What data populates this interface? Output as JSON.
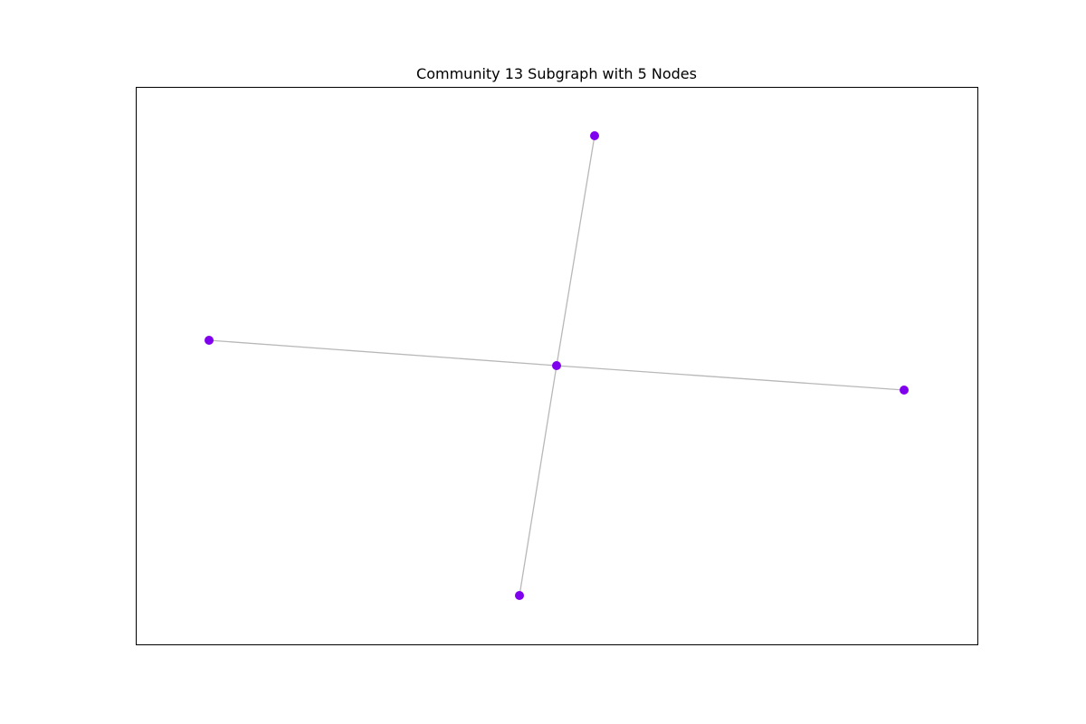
{
  "title": "Community 13 Subgraph with 5 Nodes",
  "colors": {
    "node": "#7f00ee",
    "edge": "#b8b8b8",
    "frame": "#000000",
    "background": "#ffffff"
  },
  "graph": {
    "nodes": [
      {
        "id": "center",
        "x": 0.0,
        "y": 0.0
      },
      {
        "id": "top",
        "x": 0.42,
        "y": 2.54
      },
      {
        "id": "left",
        "x": -3.84,
        "y": 0.28
      },
      {
        "id": "right",
        "x": 3.84,
        "y": -0.27
      },
      {
        "id": "bottom",
        "x": -0.41,
        "y": -2.54
      }
    ],
    "edges": [
      {
        "source": "center",
        "target": "top"
      },
      {
        "source": "center",
        "target": "left"
      },
      {
        "source": "center",
        "target": "right"
      },
      {
        "source": "center",
        "target": "bottom"
      }
    ]
  }
}
